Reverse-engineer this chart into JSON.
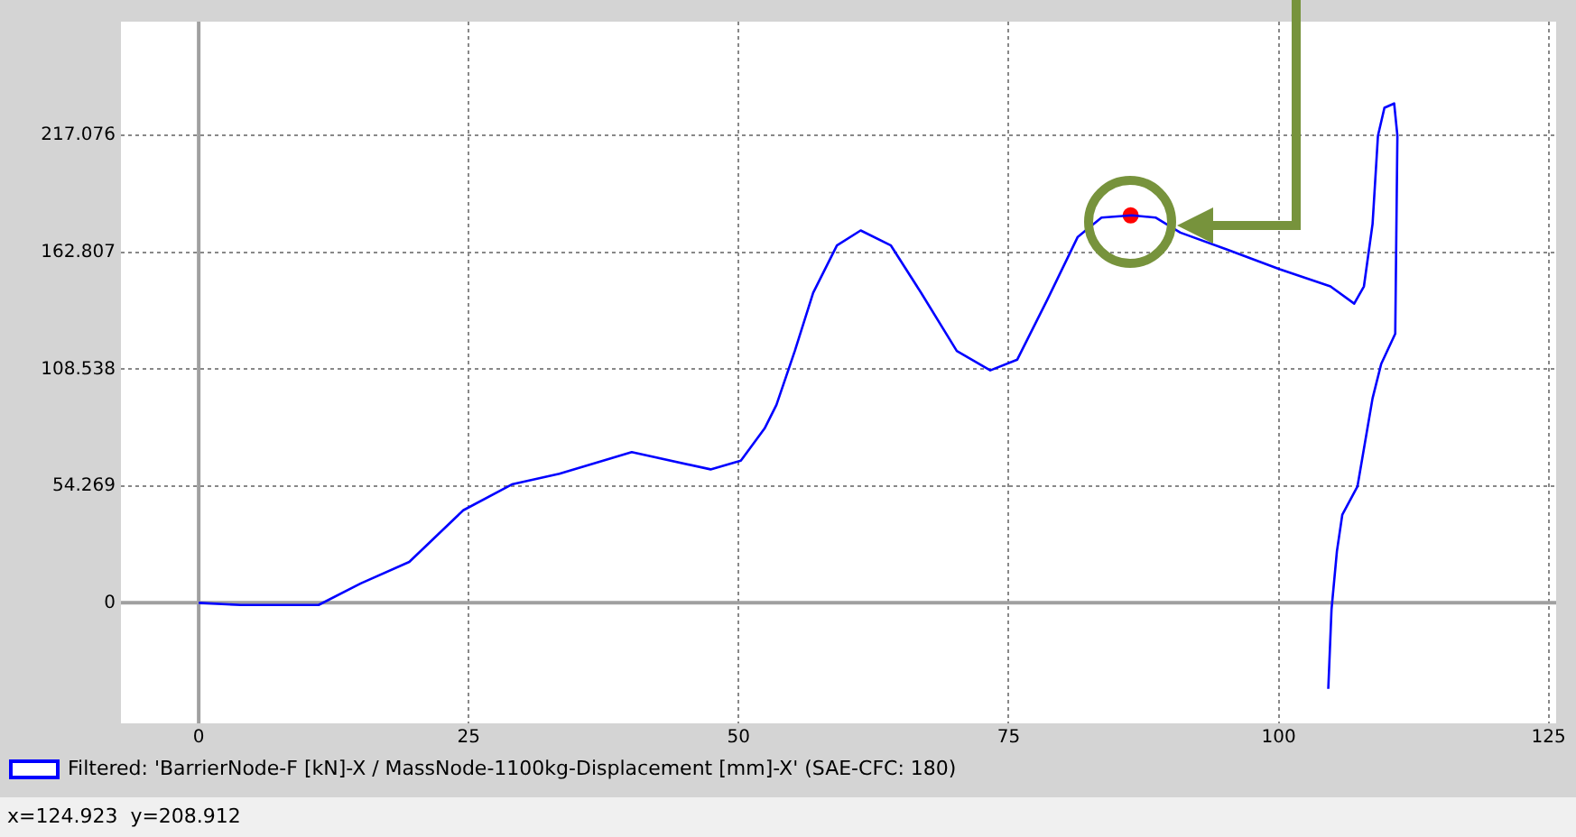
{
  "chart_data": {
    "type": "line",
    "xlim": [
      -7.2,
      125.7
    ],
    "ylim": [
      -56,
      270
    ],
    "xticks": [
      0,
      25,
      50,
      75,
      100,
      125
    ],
    "yticks": [
      0,
      54.269,
      108.538,
      162.807,
      217.076
    ],
    "grid": true,
    "legend": "bottom",
    "series": [
      {
        "name": "Filtered: 'BarrierNode-F [kN]-X / MassNode-1100kg-Displacement [mm]-X' (SAE-CFC: 180)",
        "color": "#0000ff",
        "marker": "none",
        "x": [
          0,
          3.9,
          11.1,
          15,
          19.5,
          24.5,
          29,
          33.4,
          40.1,
          47.4,
          50.2,
          52.4,
          53.5,
          55.2,
          56.9,
          59.1,
          61.3,
          64.1,
          66.9,
          70.2,
          73.3,
          75.8,
          78.6,
          81.4,
          83.6,
          86.4,
          88.6,
          90.9,
          95.3,
          100.1,
          104.8,
          107,
          107.9,
          108.7,
          109.2,
          109.8,
          110.7,
          111,
          110.9,
          110.8,
          109.5,
          108.7,
          107.3,
          105.9,
          105.4,
          104.9,
          104.6
        ],
        "values": [
          0,
          -1,
          -1,
          9,
          19,
          43,
          55,
          60,
          70,
          62,
          66,
          81,
          92,
          117,
          144,
          166,
          173,
          166,
          144,
          117,
          108,
          113,
          141,
          170,
          179,
          180,
          179,
          172,
          164,
          155,
          147,
          139,
          147,
          176,
          217,
          230,
          232,
          217,
          171,
          125,
          111,
          95,
          54,
          41,
          24,
          -3,
          -40
        ]
      },
      {
        "type": "scatter",
        "color": "#ff0000",
        "marker": "circle",
        "x": [
          86.3
        ],
        "values": [
          180
        ]
      }
    ],
    "annotations": [
      "x=124.923  y=208.912"
    ]
  }
}
